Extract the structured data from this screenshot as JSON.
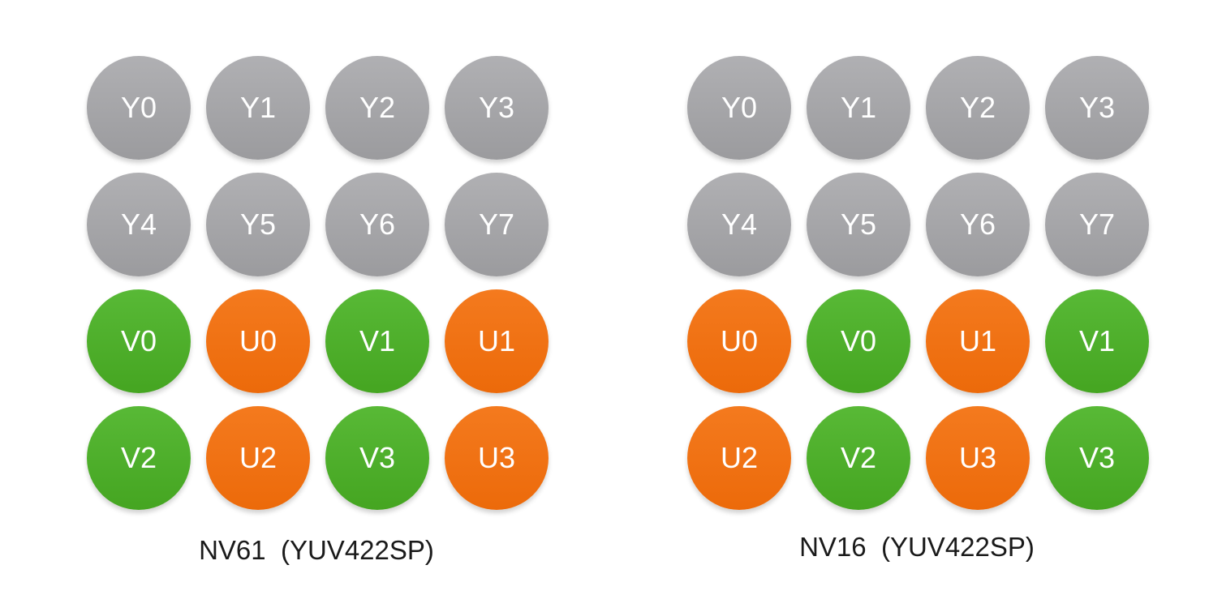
{
  "colors": {
    "Y": "#a6a6a9",
    "U": "#f07217",
    "V": "#4fb02c"
  },
  "panels": [
    {
      "caption": "NV61  (YUV422SP)",
      "cells": [
        [
          "Y0",
          "Y1",
          "Y2",
          "Y3"
        ],
        [
          "Y4",
          "Y5",
          "Y6",
          "Y7"
        ],
        [
          "V0",
          "U0",
          "V1",
          "U1"
        ],
        [
          "V2",
          "U2",
          "V3",
          "U3"
        ]
      ]
    },
    {
      "caption": "NV16  (YUV422SP)",
      "cells": [
        [
          "Y0",
          "Y1",
          "Y2",
          "Y3"
        ],
        [
          "Y4",
          "Y5",
          "Y6",
          "Y7"
        ],
        [
          "U0",
          "V0",
          "U1",
          "V1"
        ],
        [
          "U2",
          "V2",
          "U3",
          "V3"
        ]
      ]
    }
  ]
}
